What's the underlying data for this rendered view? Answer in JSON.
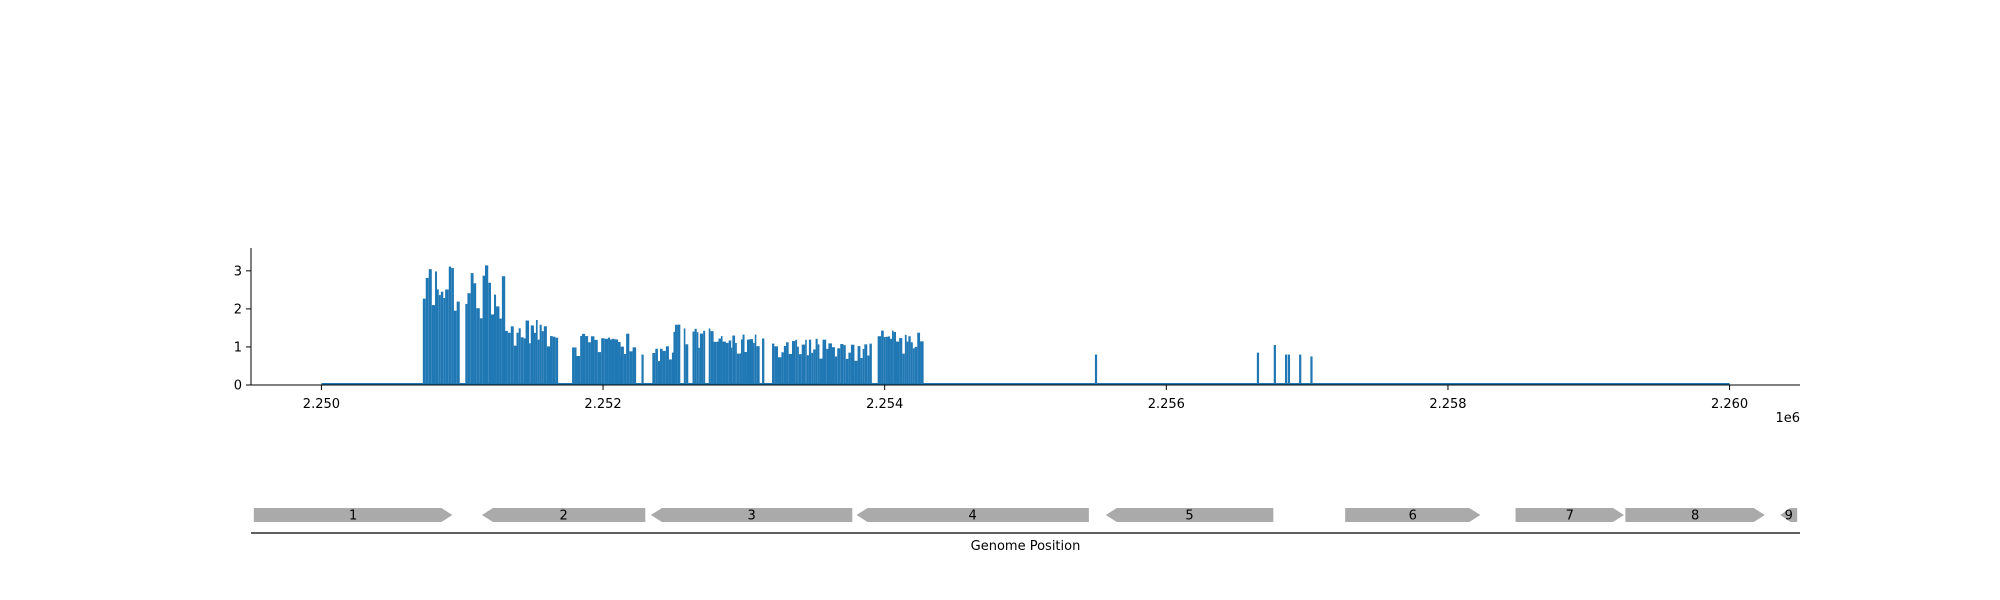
{
  "chart_data": {
    "type": "bar",
    "xlim": [
      2249500,
      2260500
    ],
    "ylim": [
      0,
      3.6
    ],
    "x_ticks": [
      2250000,
      2252000,
      2254000,
      2256000,
      2258000,
      2260000
    ],
    "x_tick_labels": [
      "2.250",
      "2.252",
      "2.254",
      "2.256",
      "2.258",
      "2.260"
    ],
    "y_ticks": [
      0,
      1,
      2,
      3
    ],
    "y_tick_labels": [
      "0",
      "1",
      "2",
      "3"
    ],
    "x_offset_label": "1e6",
    "bar_color": "#1f77b4",
    "baseline_range": [
      2250000,
      2260000
    ],
    "clusters": [
      {
        "start": 2250720,
        "end": 2251000,
        "peak": 3.3
      },
      {
        "start": 2251000,
        "end": 2251300,
        "peak": 3.15
      },
      {
        "start": 2251300,
        "end": 2251450,
        "peak": 1.6
      },
      {
        "start": 2251450,
        "end": 2251680,
        "peak": 1.8
      },
      {
        "start": 2251780,
        "end": 2252230,
        "peak": 1.35
      },
      {
        "start": 2252350,
        "end": 2252500,
        "peak": 1.1
      },
      {
        "start": 2252500,
        "end": 2252900,
        "peak": 1.6
      },
      {
        "start": 2252900,
        "end": 2253200,
        "peak": 1.35
      },
      {
        "start": 2253200,
        "end": 2253600,
        "peak": 1.25
      },
      {
        "start": 2253600,
        "end": 2253900,
        "peak": 1.1
      },
      {
        "start": 2253950,
        "end": 2254300,
        "peak": 1.45
      }
    ],
    "isolated_peaks": [
      {
        "x": 2251630,
        "y": 0.85
      },
      {
        "x": 2252120,
        "y": 0.75
      },
      {
        "x": 2252200,
        "y": 0.7
      },
      {
        "x": 2252280,
        "y": 0.8
      },
      {
        "x": 2255500,
        "y": 0.8
      },
      {
        "x": 2256650,
        "y": 0.85
      },
      {
        "x": 2256770,
        "y": 1.05
      },
      {
        "x": 2256850,
        "y": 0.8
      },
      {
        "x": 2256870,
        "y": 0.8
      },
      {
        "x": 2256950,
        "y": 0.8
      },
      {
        "x": 2257030,
        "y": 0.75
      }
    ],
    "genes": [
      {
        "label": "1",
        "start": 2249520,
        "end": 2250930,
        "strand": "+"
      },
      {
        "label": "2",
        "start": 2251140,
        "end": 2252300,
        "strand": "-"
      },
      {
        "label": "3",
        "start": 2252340,
        "end": 2253770,
        "strand": "-"
      },
      {
        "label": "4",
        "start": 2253800,
        "end": 2255450,
        "strand": "-"
      },
      {
        "label": "5",
        "start": 2255570,
        "end": 2256760,
        "strand": "-"
      },
      {
        "label": "6",
        "start": 2257270,
        "end": 2258230,
        "strand": "+"
      },
      {
        "label": "7",
        "start": 2258480,
        "end": 2259250,
        "strand": "+"
      },
      {
        "label": "8",
        "start": 2259260,
        "end": 2260250,
        "strand": "+"
      },
      {
        "label": "9",
        "start": 2260360,
        "end": 2260480,
        "strand": "-"
      }
    ],
    "gene_color": "#aaaaaa",
    "gene_axis_label": "Genome Position"
  }
}
